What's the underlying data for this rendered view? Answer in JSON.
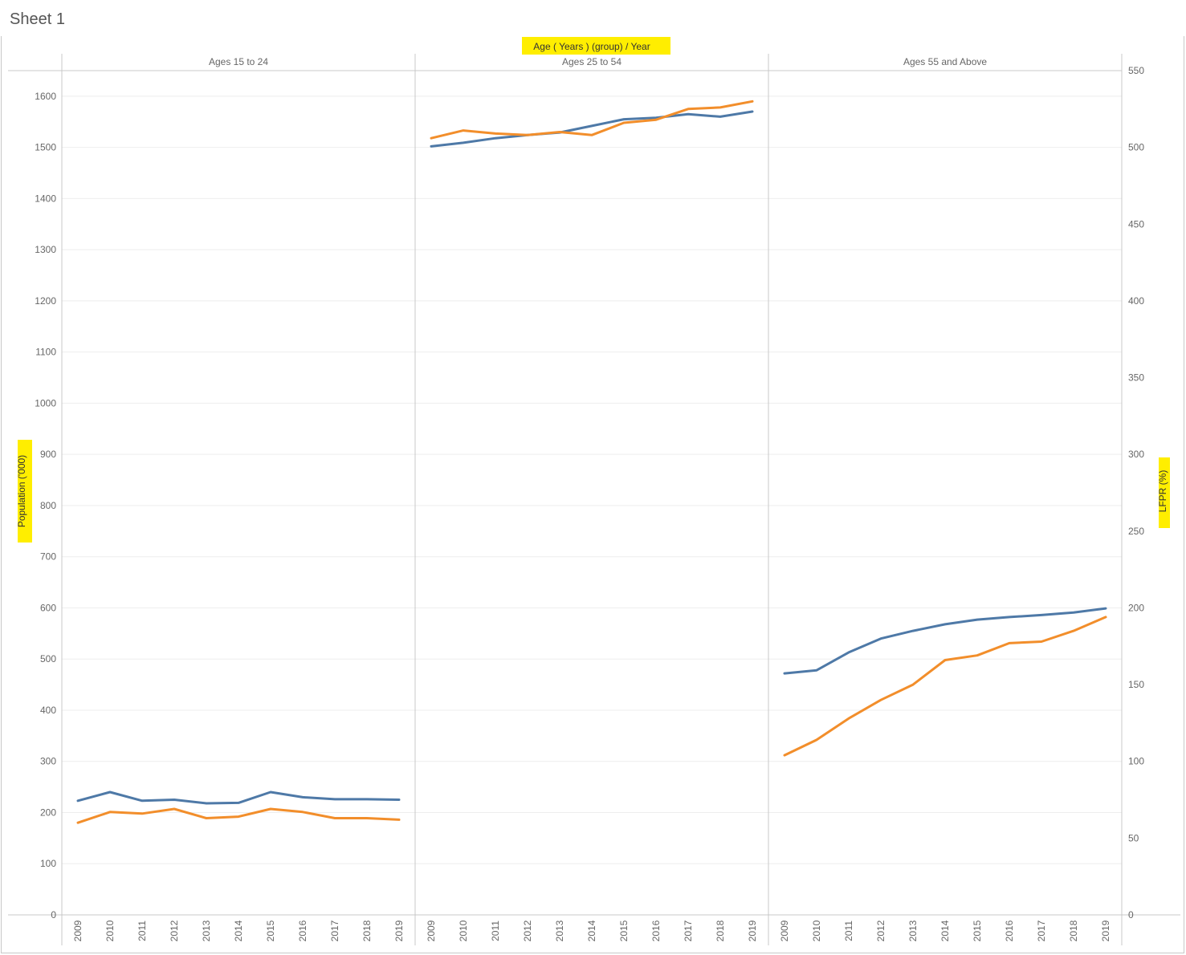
{
  "sheet": {
    "title": "Sheet 1"
  },
  "colors": {
    "population": "#4e79a7",
    "lfpr": "#f28e2b",
    "highlight": "#ffee00",
    "grid": "#eeeeee",
    "rule": "#c8c8c8"
  },
  "chart_data": {
    "type": "line",
    "title": "",
    "column_header_title": "Age ( Years ) (group)  /  Year",
    "ylabel": "Population ('000)",
    "y2label": "LFPR (%)",
    "ylim": [
      0,
      1650
    ],
    "y2lim": [
      0,
      550
    ],
    "yticks": [
      0,
      100,
      200,
      300,
      400,
      500,
      600,
      700,
      800,
      900,
      1000,
      1100,
      1200,
      1300,
      1400,
      1500,
      1600
    ],
    "y2ticks": [
      0,
      50,
      100,
      150,
      200,
      250,
      300,
      350,
      400,
      450,
      500,
      550
    ],
    "x": [
      "2009",
      "2010",
      "2011",
      "2012",
      "2013",
      "2014",
      "2015",
      "2016",
      "2017",
      "2018",
      "2019"
    ],
    "grid": true,
    "panes": [
      {
        "name": "Ages 15 to 24",
        "series": [
          {
            "axis": "left",
            "color": "#4e79a7",
            "values": [
              223,
              240,
              223,
              225,
              218,
              219,
              240,
              230,
              226,
              226,
              225
            ]
          },
          {
            "axis": "right",
            "color": "#f28e2b",
            "values": [
              60,
              67,
              66,
              69,
              63,
              64,
              69,
              67,
              63,
              63,
              62
            ]
          }
        ]
      },
      {
        "name": "Ages 25 to 54",
        "series": [
          {
            "axis": "left",
            "color": "#4e79a7",
            "values": [
              1502,
              1509,
              1518,
              1524,
              1529,
              1542,
              1555,
              1558,
              1565,
              1560,
              1570
            ]
          },
          {
            "axis": "right",
            "color": "#f28e2b",
            "values": [
              506,
              511,
              509,
              508,
              510,
              508,
              516,
              518,
              525,
              526,
              530
            ]
          }
        ]
      },
      {
        "name": "Ages 55 and Above",
        "series": [
          {
            "axis": "left",
            "color": "#4e79a7",
            "values": [
              472,
              478,
              513,
              540,
              555,
              568,
              577,
              582,
              586,
              591,
              599
            ]
          },
          {
            "axis": "right",
            "color": "#f28e2b",
            "values": [
              104,
              114,
              128,
              140,
              150,
              166,
              169,
              177,
              178,
              185,
              194
            ]
          }
        ]
      }
    ]
  }
}
